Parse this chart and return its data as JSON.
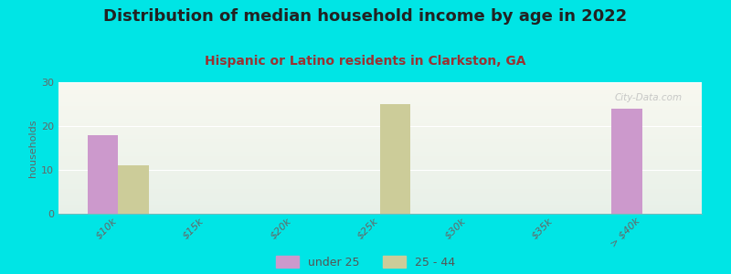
{
  "title": "Distribution of median household income by age in 2022",
  "subtitle": "Hispanic or Latino residents in Clarkston, GA",
  "ylabel": "households",
  "categories": [
    "$10k",
    "$15k",
    "$20k",
    "$25k",
    "$30k",
    "$35k",
    "> $40k"
  ],
  "under25": [
    18,
    0,
    0,
    0,
    0,
    0,
    24
  ],
  "age25_44": [
    11,
    0,
    0,
    25,
    0,
    0,
    0
  ],
  "under25_color": "#cc99cc",
  "age25_44_color": "#cccc99",
  "background_color": "#00e5e5",
  "ylim": [
    0,
    30
  ],
  "yticks": [
    0,
    10,
    20,
    30
  ],
  "bar_width": 0.35,
  "title_color": "#222222",
  "subtitle_color": "#993333",
  "watermark": "City-Data.com",
  "legend_under25": "under 25",
  "legend_25_44": "25 - 44",
  "title_fontsize": 13,
  "subtitle_fontsize": 10
}
